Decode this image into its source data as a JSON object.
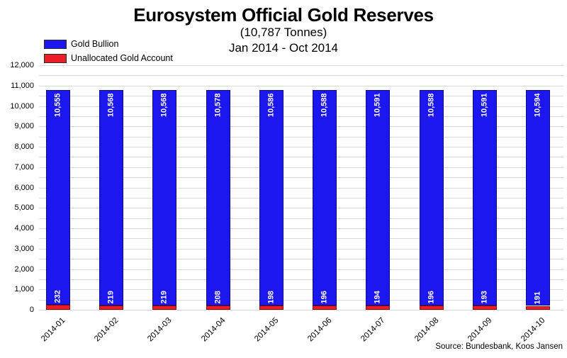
{
  "header": {
    "title": "Eurosystem Official Gold Reserves",
    "subtitle_tonnes": "(10,787 Tonnes)",
    "subtitle_range": "Jan 2014 - Oct 2014"
  },
  "legend": {
    "items": [
      {
        "label": "Gold Bullion",
        "color": "#1b17ee"
      },
      {
        "label": "Unallocated Gold Account",
        "color": "#ec1d24"
      }
    ]
  },
  "footer": {
    "source": "Source: Bundesbank, Koos Jansen"
  },
  "colors": {
    "gold_bullion": "#1b17ee",
    "unallocated": "#ec1d24",
    "gridline": "#d9d9d9",
    "value_label_text": "#ffffff"
  },
  "chart_data": {
    "type": "bar",
    "stacked": true,
    "title": "Eurosystem Official Gold Reserves",
    "subtitle": "(10,787 Tonnes) Jan 2014 - Oct 2014",
    "xlabel": "",
    "ylabel": "",
    "ylim": [
      0,
      12000
    ],
    "y_major_tick": 1000,
    "y_minor_gridline": 500,
    "grid": true,
    "legend_position": "top-left",
    "categories": [
      "2014-01",
      "2014-02",
      "2014-03",
      "2014-04",
      "2014-05",
      "2014-06",
      "2014-07",
      "2014-08",
      "2014-09",
      "2014-10"
    ],
    "series": [
      {
        "name": "Gold Bullion",
        "color": "#1b17ee",
        "values": [
          10555,
          10568,
          10568,
          10578,
          10586,
          10588,
          10591,
          10588,
          10591,
          10594
        ],
        "labels": [
          "10,555",
          "10,568",
          "10,568",
          "10,578",
          "10,586",
          "10,588",
          "10,591",
          "10,588",
          "10,591",
          "10,594"
        ]
      },
      {
        "name": "Unallocated Gold Account",
        "color": "#ec1d24",
        "values": [
          232,
          219,
          219,
          208,
          198,
          196,
          194,
          196,
          193,
          191
        ],
        "labels": [
          "232",
          "219",
          "219",
          "208",
          "198",
          "196",
          "194",
          "196",
          "193",
          "191"
        ]
      }
    ],
    "y_tick_labels": [
      "0",
      "1,000",
      "2,000",
      "3,000",
      "4,000",
      "5,000",
      "6,000",
      "7,000",
      "8,000",
      "9,000",
      "10,000",
      "11,000",
      "12,000"
    ]
  }
}
